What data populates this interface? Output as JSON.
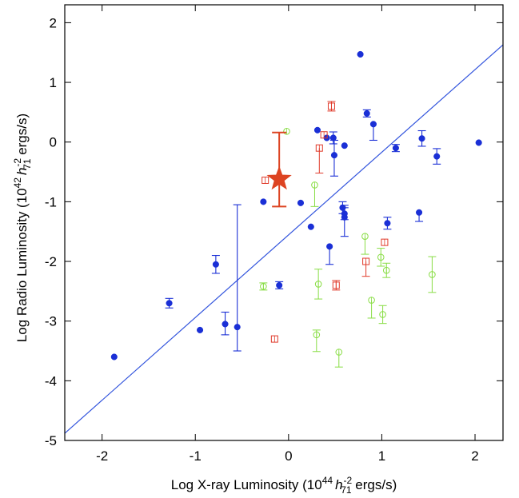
{
  "chart_data": {
    "type": "scatter",
    "xlim": [
      -2.4,
      2.3
    ],
    "ylim": [
      -5,
      2.3
    ],
    "x_ticks": [
      -2,
      -1,
      0,
      1,
      2
    ],
    "y_ticks": [
      -5,
      -4,
      -3,
      -2,
      -1,
      0,
      1,
      2
    ],
    "xlabel": {
      "pre": "Log X-ray Luminosity (10",
      "exp": "44",
      "h": "h",
      "hsub": "71",
      "hsup": "-2",
      "post": " ergs/s)"
    },
    "ylabel": {
      "pre": "Log Radio Luminosity (10",
      "exp": "42",
      "h": "h",
      "hsub": "71",
      "hsup": "-2",
      "post": " ergs/s)"
    },
    "grid": false,
    "fit_line": {
      "color": "#3355dd",
      "x": [
        -2.4,
        2.3
      ],
      "y": [
        -4.88,
        1.63
      ]
    },
    "series": [
      {
        "marker": "filled-circle",
        "color": "#1a2fd6",
        "points": [
          {
            "x": -1.87,
            "y": -3.6
          },
          {
            "x": -1.28,
            "y": -2.7,
            "yerr": [
              0.08,
              0.08
            ]
          },
          {
            "x": -0.95,
            "y": -3.15
          },
          {
            "x": -0.78,
            "y": -2.05,
            "yerr": [
              0.15,
              0.15
            ]
          },
          {
            "x": -0.68,
            "y": -3.05,
            "yerr": [
              0.18,
              0.2
            ]
          },
          {
            "x": -0.55,
            "y": -3.1,
            "yerr": [
              0.4,
              2.05
            ]
          },
          {
            "x": -0.27,
            "y": -1.0
          },
          {
            "x": -0.1,
            "y": -2.4,
            "yerr": [
              0.06,
              0.06
            ]
          },
          {
            "x": 0.13,
            "y": -1.02
          },
          {
            "x": 0.24,
            "y": -1.42
          },
          {
            "x": 0.31,
            "y": 0.2
          },
          {
            "x": 0.41,
            "y": 0.07
          },
          {
            "x": 0.44,
            "y": -1.75,
            "yerr": [
              0.3,
              0.0
            ]
          },
          {
            "x": 0.48,
            "y": 0.07,
            "yerr": [
              0.1,
              0.1
            ]
          },
          {
            "x": 0.49,
            "y": -0.22,
            "yerr": [
              0.35,
              0.25
            ]
          },
          {
            "x": 0.58,
            "y": -1.1,
            "yerr": [
              0.1,
              0.1
            ]
          },
          {
            "x": 0.6,
            "y": -1.2,
            "yerr": [
              0.1,
              0.1
            ]
          },
          {
            "x": 0.6,
            "y": -1.26,
            "yerr": [
              0.32,
              0.2
            ]
          },
          {
            "x": 0.6,
            "y": -0.06
          },
          {
            "x": 0.77,
            "y": 1.47
          },
          {
            "x": 0.84,
            "y": 0.48,
            "yerr": [
              0.06,
              0.06
            ]
          },
          {
            "x": 0.91,
            "y": 0.3,
            "yerr": [
              0.27,
              0.0
            ]
          },
          {
            "x": 1.06,
            "y": -1.36,
            "yerr": [
              0.1,
              0.1
            ]
          },
          {
            "x": 1.15,
            "y": -0.1,
            "yerr": [
              0.06,
              0.06
            ]
          },
          {
            "x": 1.4,
            "y": -1.18,
            "yerr": [
              0.15,
              0.0
            ]
          },
          {
            "x": 1.43,
            "y": 0.06,
            "yerr": [
              0.13,
              0.13
            ]
          },
          {
            "x": 1.59,
            "y": -0.24,
            "yerr": [
              0.13,
              0.13
            ]
          },
          {
            "x": 2.04,
            "y": -0.01
          }
        ]
      },
      {
        "marker": "open-square",
        "color": "#e03a2a",
        "points": [
          {
            "x": -0.25,
            "y": -0.64
          },
          {
            "x": -0.15,
            "y": -3.3
          },
          {
            "x": 0.33,
            "y": -0.1,
            "yerr": [
              0.42,
              0.0
            ]
          },
          {
            "x": 0.38,
            "y": 0.12
          },
          {
            "x": 0.46,
            "y": 0.6,
            "yerr": [
              0.08,
              0.08
            ]
          },
          {
            "x": 0.51,
            "y": -2.4,
            "yerr": [
              0.08,
              0.08
            ]
          },
          {
            "x": 0.83,
            "y": -2.0,
            "yerr": [
              0.25,
              0.0
            ]
          },
          {
            "x": 1.03,
            "y": -1.68
          }
        ]
      },
      {
        "marker": "open-circle",
        "color": "#88dd44",
        "points": [
          {
            "x": -0.27,
            "y": -2.42,
            "yerr": [
              0.06,
              0.06
            ]
          },
          {
            "x": -0.02,
            "y": 0.18
          },
          {
            "x": 0.28,
            "y": -0.72,
            "yerr": [
              0.36,
              0.0
            ]
          },
          {
            "x": 0.3,
            "y": -3.23,
            "yerr": [
              0.28,
              0.08
            ]
          },
          {
            "x": 0.32,
            "y": -2.38,
            "yerr": [
              0.25,
              0.25
            ]
          },
          {
            "x": 0.54,
            "y": -3.52,
            "yerr": [
              0.25,
              0.0
            ]
          },
          {
            "x": 0.82,
            "y": -1.58,
            "yerr": [
              0.3,
              0.0
            ]
          },
          {
            "x": 0.89,
            "y": -2.65,
            "yerr": [
              0.3,
              0.0
            ]
          },
          {
            "x": 0.99,
            "y": -1.93,
            "yerr": [
              0.15,
              0.15
            ]
          },
          {
            "x": 1.01,
            "y": -2.89,
            "yerr": [
              0.15,
              0.15
            ]
          },
          {
            "x": 1.05,
            "y": -2.15,
            "yerr": [
              0.12,
              0.12
            ]
          },
          {
            "x": 1.54,
            "y": -2.22,
            "yerr": [
              0.3,
              0.3
            ]
          }
        ]
      },
      {
        "marker": "star",
        "color": "#dd4422",
        "points": [
          {
            "x": -0.1,
            "y": -0.62,
            "yerr": [
              0.46,
              0.78
            ]
          }
        ]
      }
    ]
  }
}
